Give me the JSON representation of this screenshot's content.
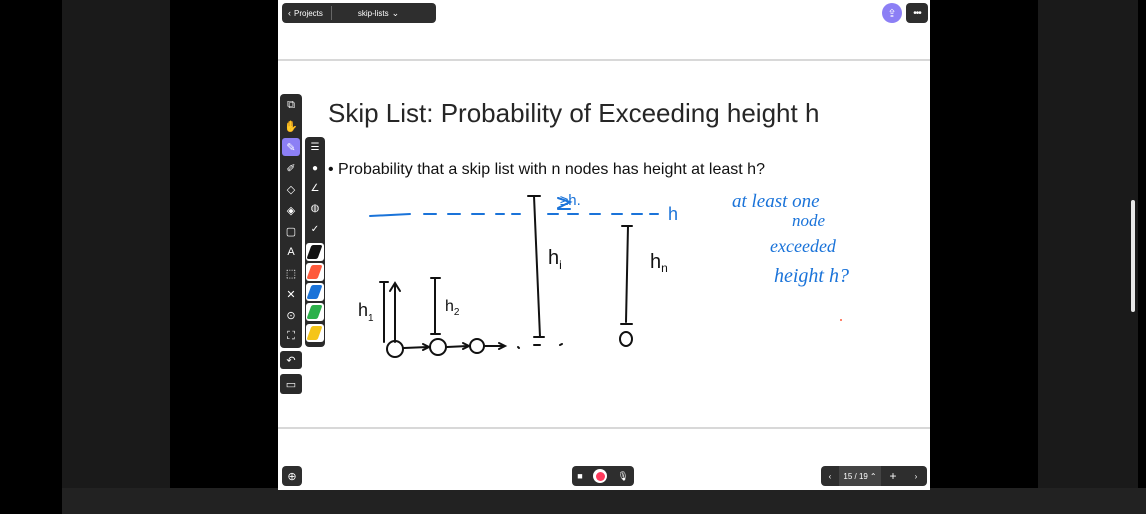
{
  "topbar": {
    "back_label": "Projects",
    "doc_title": "skip-lists",
    "share_icon": "share-icon",
    "more_icon": "more-icon"
  },
  "slide": {
    "title": "Skip List: Probability of Exceeding height h",
    "bullet": "Probability that a skip list with n nodes has height at least h?"
  },
  "annotations": {
    "threshold_label": "≥h.",
    "h_label": "h",
    "h1": "h",
    "h1_sub": "1",
    "h2": "h",
    "h2_sub": "2",
    "hi": "h",
    "hi_sub": "i",
    "hn": "h",
    "hn_sub": "n",
    "note_line1": "at least one",
    "note_line2": "node",
    "note_line3": "exceeded",
    "note_line4": "height h?"
  },
  "colors": {
    "accent": "#8c7ff5",
    "ink_black": "#111111",
    "ink_blue": "#1a73d9",
    "record": "#ff3a5c"
  },
  "toolbar": {
    "tools": [
      "select-icon",
      "hand-icon",
      "pen-icon",
      "highlighter-icon",
      "eraser-icon",
      "fill-icon",
      "shapes-icon",
      "text-icon",
      "lasso-icon",
      "close-icon",
      "laser-icon",
      "crop-icon"
    ],
    "active_tool": "pen-icon",
    "pen_colors": [
      "#111111",
      "#ff5a3c",
      "#1a73d9",
      "#2bb04a",
      "#f5c518"
    ]
  },
  "bottom": {
    "page_indicator": "15 / 19",
    "add_label": "+"
  }
}
